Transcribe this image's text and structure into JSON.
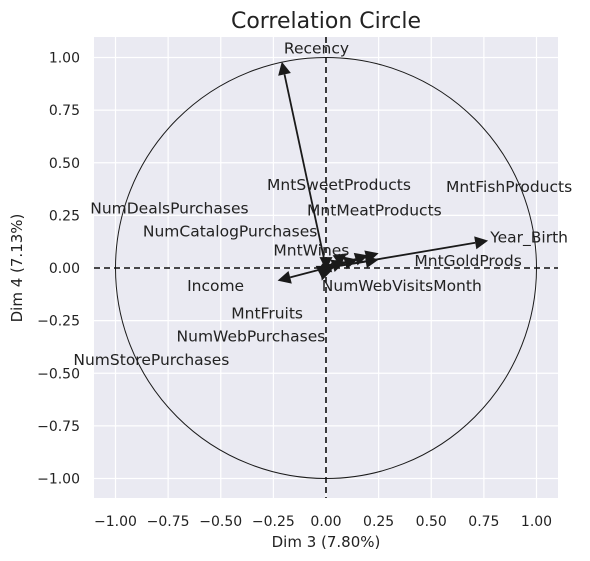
{
  "chart_data": {
    "type": "scatter",
    "title": "Correlation Circle",
    "xlabel": "Dim 3 (7.80%)",
    "ylabel": "Dim 4 (7.13%)",
    "xlim": [
      -1.1,
      1.1
    ],
    "ylim": [
      -1.1,
      1.1
    ],
    "xticks": [
      "−1.00",
      "−0.75",
      "−0.50",
      "−0.25",
      "0.00",
      "0.25",
      "0.50",
      "0.75",
      "1.00"
    ],
    "yticks": [
      "1.00",
      "0.75",
      "0.50",
      "0.25",
      "0.00",
      "−0.25",
      "−0.50",
      "−0.75",
      "−1.00"
    ],
    "grid": true,
    "background": "#eaeaf2",
    "arrow_color": "#1a1a1a",
    "variables": [
      {
        "name": "Recency",
        "x": -0.21,
        "y": 0.98,
        "lx": -0.2,
        "ly": 1.02
      },
      {
        "name": "MntSweetProducts",
        "x": 0.1,
        "y": 0.07,
        "lx": -0.28,
        "ly": 0.37
      },
      {
        "name": "MntFishProducts",
        "x": 0.25,
        "y": 0.07,
        "lx": 0.57,
        "ly": 0.36
      },
      {
        "name": "NumDealsPurchases",
        "x": 0.02,
        "y": 0.01,
        "lx": -1.12,
        "ly": 0.26
      },
      {
        "name": "MntMeatProducts",
        "x": 0.2,
        "y": 0.06,
        "lx": -0.09,
        "ly": 0.25
      },
      {
        "name": "NumCatalogPurchases",
        "x": 0.15,
        "y": 0.04,
        "lx": -0.87,
        "ly": 0.15
      },
      {
        "name": "Year_Birth",
        "x": 0.77,
        "y": 0.13,
        "lx": 0.78,
        "ly": 0.12
      },
      {
        "name": "MntWines",
        "x": 0.09,
        "y": 0.03,
        "lx": -0.25,
        "ly": 0.06
      },
      {
        "name": "MntGoldProds",
        "x": 0.25,
        "y": 0.04,
        "lx": 0.42,
        "ly": 0.01
      },
      {
        "name": "Income",
        "x": -0.23,
        "y": -0.06,
        "lx": -0.66,
        "ly": -0.11
      },
      {
        "name": "NumWebVisitsMonth",
        "x": -0.02,
        "y": -0.06,
        "lx": -0.02,
        "ly": -0.11
      },
      {
        "name": "MntFruits",
        "x": 0.05,
        "y": 0.01,
        "lx": -0.45,
        "ly": -0.24
      },
      {
        "name": "NumWebPurchases",
        "x": 0.03,
        "y": -0.02,
        "lx": -0.71,
        "ly": -0.35
      },
      {
        "name": "NumStorePurchases",
        "x": 0.0,
        "y": -0.01,
        "lx": -1.2,
        "ly": -0.46
      }
    ]
  }
}
